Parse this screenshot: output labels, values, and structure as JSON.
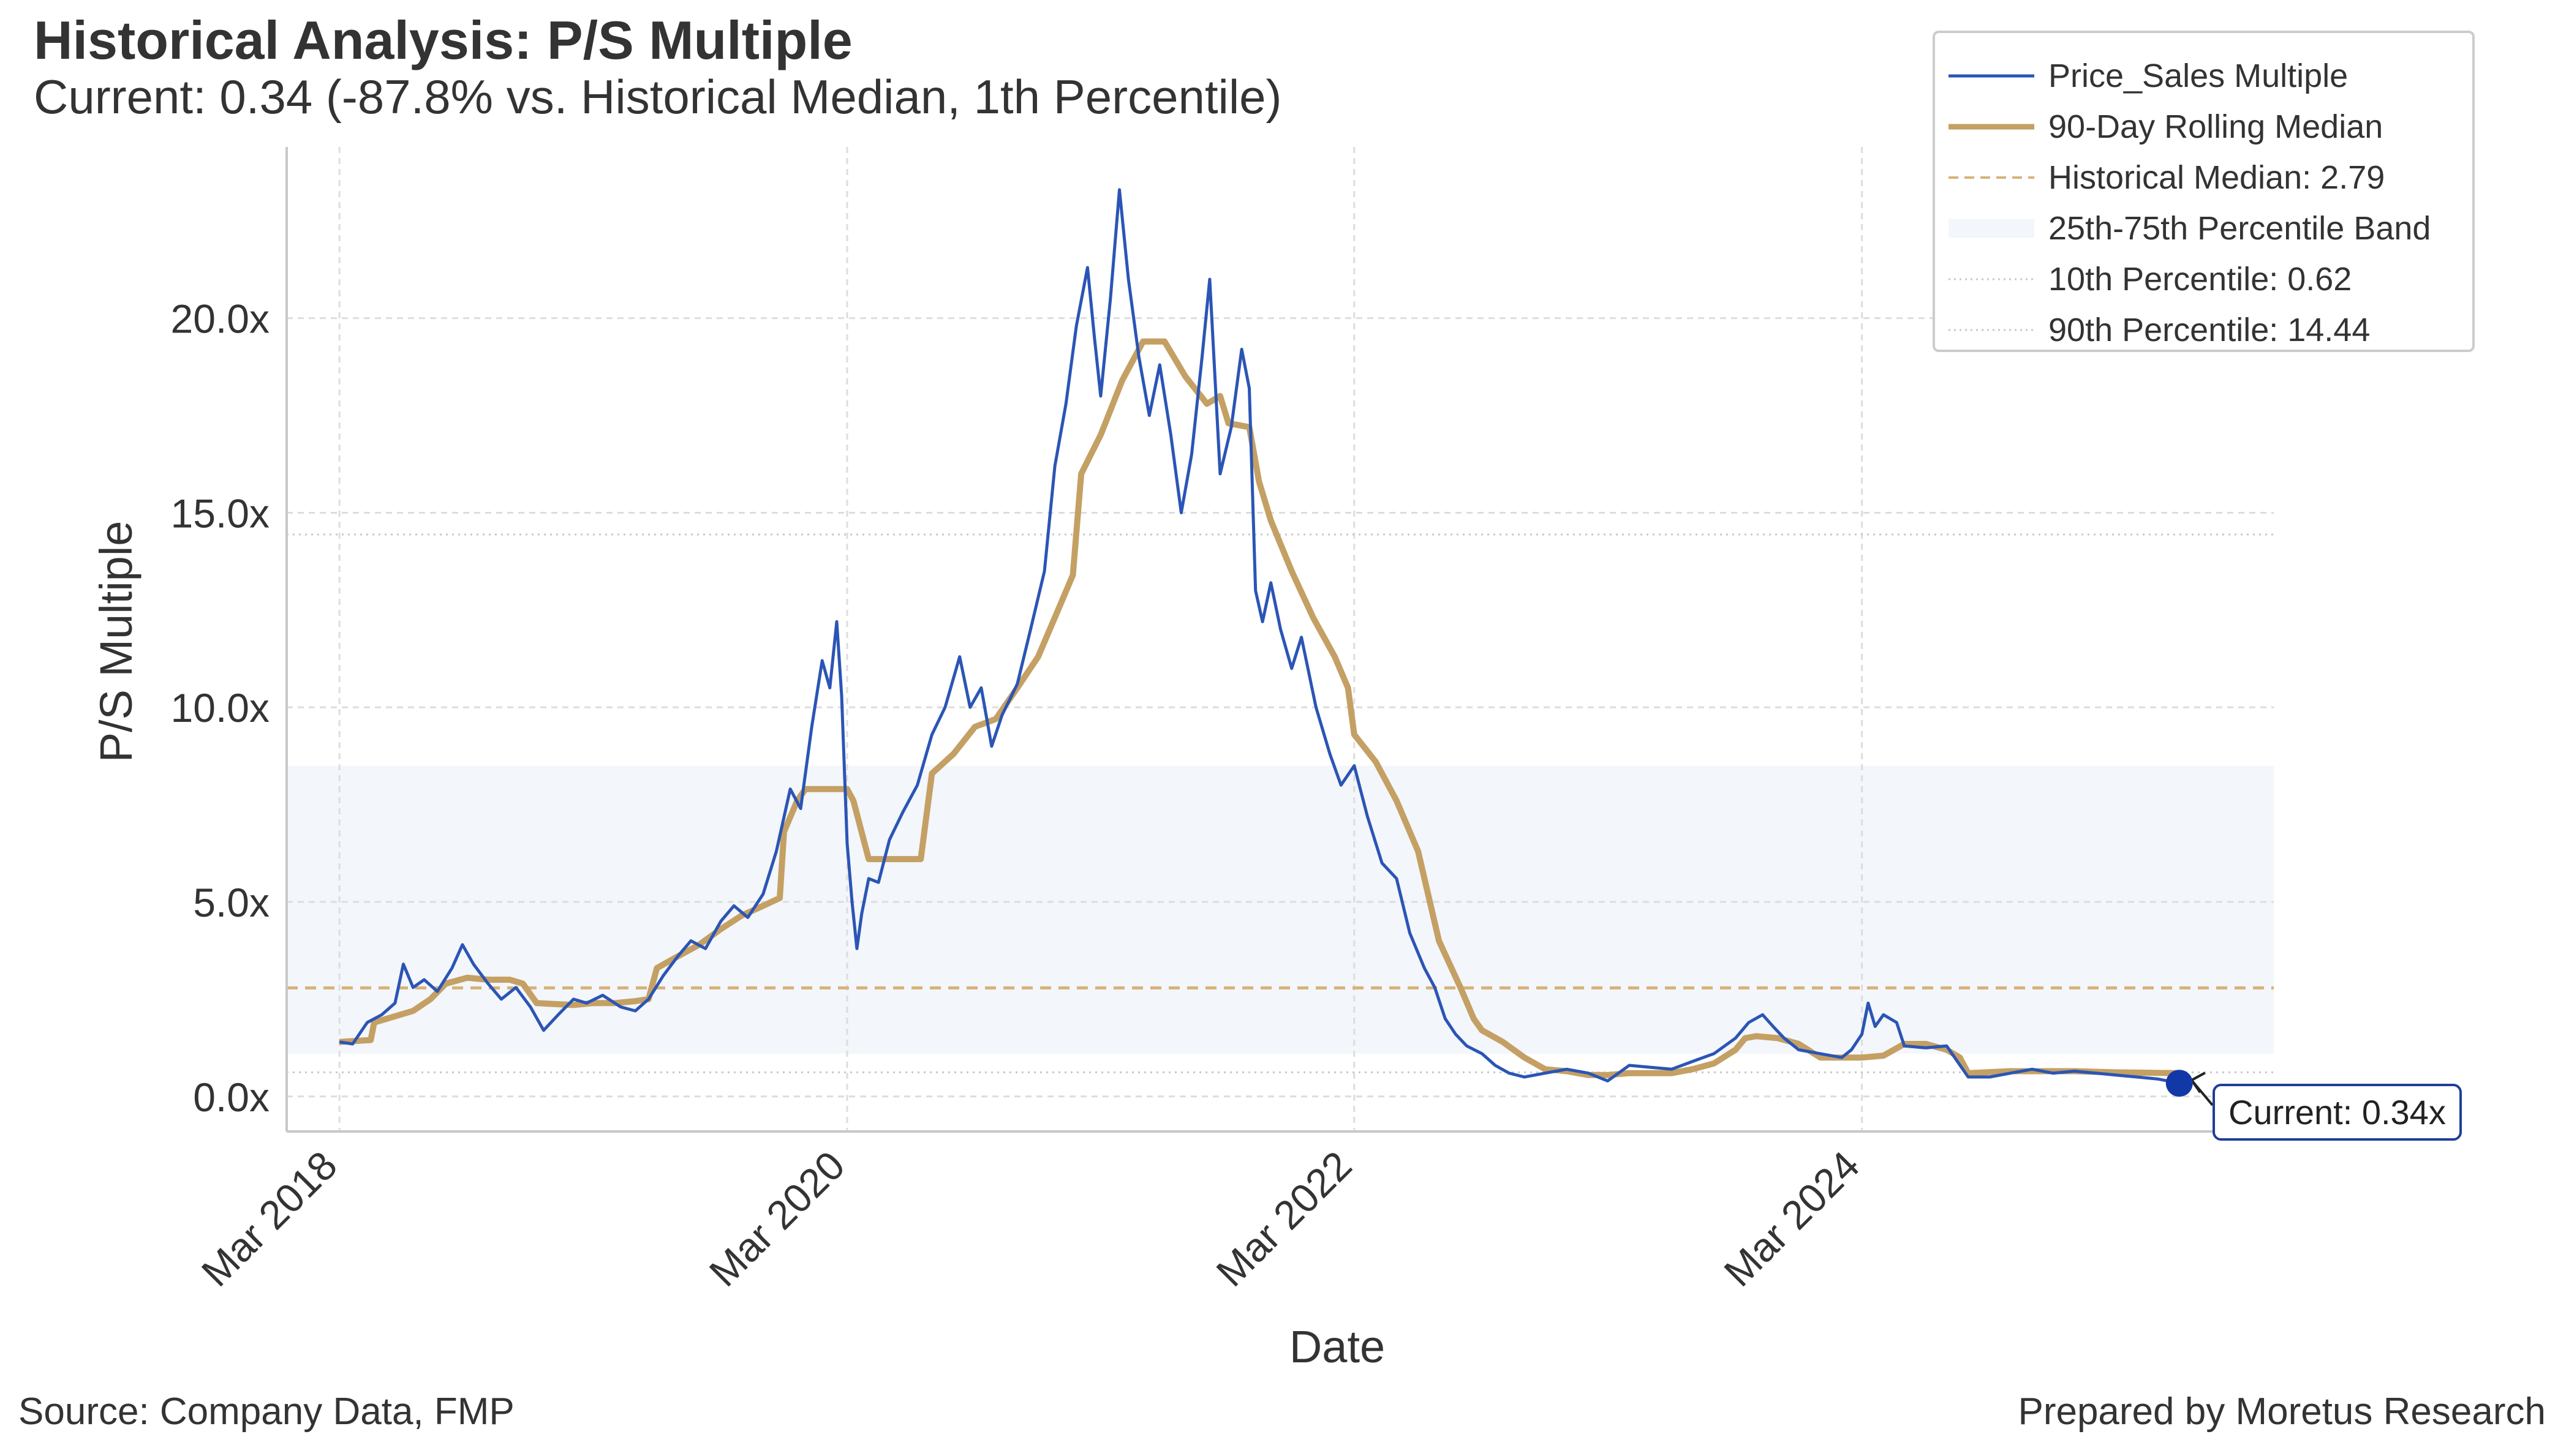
{
  "title": "Historical Analysis: P/S Multiple",
  "subtitle": "Current: 0.34 (-87.8% vs. Historical Median, 1th Percentile)",
  "footer": {
    "source": "Source: Company Data, FMP",
    "prepared_by": "Prepared by Moretus Research"
  },
  "colors": {
    "series": "#2b55b5",
    "rolling_median": "#c4a064",
    "historical_median": "#d8b27a",
    "band": "#f3f6fa",
    "percentile_lines": "#c8c8c8",
    "grid": "#dddddd",
    "current_marker": "#1238a8"
  },
  "chart_data": {
    "type": "line",
    "xlabel": "Date",
    "ylabel": "P/S Multiple",
    "x_range": [
      "2017-12-15",
      "2025-10-15"
    ],
    "ylim": [
      -0.9,
      24.4
    ],
    "x_ticks": [
      {
        "date": "2018-03-01",
        "label": "Mar 2018"
      },
      {
        "date": "2020-03-01",
        "label": "Mar 2020"
      },
      {
        "date": "2022-03-01",
        "label": "Mar 2022"
      },
      {
        "date": "2024-03-01",
        "label": "Mar 2024"
      }
    ],
    "y_ticks": [
      {
        "value": 0,
        "label": "0.0x"
      },
      {
        "value": 5,
        "label": "5.0x"
      },
      {
        "value": 10,
        "label": "10.0x"
      },
      {
        "value": 15,
        "label": "15.0x"
      },
      {
        "value": 20,
        "label": "20.0x"
      }
    ],
    "grid": true,
    "legend_position": "top-right",
    "legend": [
      "Price_Sales Multiple",
      "90-Day Rolling Median",
      "Historical Median: 2.79",
      "25th-75th Percentile Band",
      "10th Percentile: 0.62",
      "90th Percentile: 14.44"
    ],
    "historical_median": 2.79,
    "percentile_band": [
      1.1,
      8.5
    ],
    "percentile_10": 0.62,
    "percentile_90": 14.44,
    "current": {
      "date": "2025-06-01",
      "value": 0.34,
      "label": "Current: 0.34x"
    },
    "series": [
      {
        "name": "Price_Sales Multiple",
        "points": [
          [
            "2018-03-01",
            1.4
          ],
          [
            "2018-03-20",
            1.35
          ],
          [
            "2018-04-10",
            1.9
          ],
          [
            "2018-05-01",
            2.1
          ],
          [
            "2018-05-20",
            2.4
          ],
          [
            "2018-06-01",
            3.4
          ],
          [
            "2018-06-15",
            2.8
          ],
          [
            "2018-07-01",
            3.0
          ],
          [
            "2018-07-20",
            2.7
          ],
          [
            "2018-08-10",
            3.3
          ],
          [
            "2018-08-25",
            3.9
          ],
          [
            "2018-09-10",
            3.4
          ],
          [
            "2018-10-01",
            2.9
          ],
          [
            "2018-10-20",
            2.5
          ],
          [
            "2018-11-10",
            2.8
          ],
          [
            "2018-12-01",
            2.3
          ],
          [
            "2018-12-20",
            1.7
          ],
          [
            "2019-01-10",
            2.1
          ],
          [
            "2019-02-01",
            2.5
          ],
          [
            "2019-02-20",
            2.4
          ],
          [
            "2019-03-15",
            2.6
          ],
          [
            "2019-04-10",
            2.3
          ],
          [
            "2019-05-01",
            2.2
          ],
          [
            "2019-05-20",
            2.5
          ],
          [
            "2019-06-10",
            3.1
          ],
          [
            "2019-07-01",
            3.6
          ],
          [
            "2019-07-20",
            4.0
          ],
          [
            "2019-08-10",
            3.8
          ],
          [
            "2019-09-01",
            4.5
          ],
          [
            "2019-09-20",
            4.9
          ],
          [
            "2019-10-10",
            4.6
          ],
          [
            "2019-11-01",
            5.2
          ],
          [
            "2019-11-20",
            6.3
          ],
          [
            "2019-12-10",
            7.9
          ],
          [
            "2019-12-25",
            7.4
          ],
          [
            "2020-01-10",
            9.5
          ],
          [
            "2020-01-25",
            11.2
          ],
          [
            "2020-02-05",
            10.5
          ],
          [
            "2020-02-15",
            12.2
          ],
          [
            "2020-02-22",
            10.3
          ],
          [
            "2020-03-01",
            6.5
          ],
          [
            "2020-03-08",
            5.0
          ],
          [
            "2020-03-15",
            3.8
          ],
          [
            "2020-03-22",
            4.7
          ],
          [
            "2020-04-01",
            5.6
          ],
          [
            "2020-04-15",
            5.5
          ],
          [
            "2020-05-01",
            6.6
          ],
          [
            "2020-05-20",
            7.3
          ],
          [
            "2020-06-10",
            8.0
          ],
          [
            "2020-07-01",
            9.3
          ],
          [
            "2020-07-20",
            10.0
          ],
          [
            "2020-08-10",
            11.3
          ],
          [
            "2020-08-25",
            10.0
          ],
          [
            "2020-09-10",
            10.5
          ],
          [
            "2020-09-25",
            9.0
          ],
          [
            "2020-10-10",
            9.8
          ],
          [
            "2020-11-01",
            10.6
          ],
          [
            "2020-11-20",
            12.0
          ],
          [
            "2020-12-10",
            13.5
          ],
          [
            "2020-12-25",
            16.2
          ],
          [
            "2021-01-10",
            17.8
          ],
          [
            "2021-01-25",
            19.8
          ],
          [
            "2021-02-10",
            21.3
          ],
          [
            "2021-02-20",
            19.5
          ],
          [
            "2021-03-01",
            18.0
          ],
          [
            "2021-03-15",
            20.5
          ],
          [
            "2021-03-28",
            23.3
          ],
          [
            "2021-04-10",
            21.0
          ],
          [
            "2021-04-25",
            19.0
          ],
          [
            "2021-05-10",
            17.5
          ],
          [
            "2021-05-25",
            18.8
          ],
          [
            "2021-06-10",
            17.0
          ],
          [
            "2021-06-25",
            15.0
          ],
          [
            "2021-07-10",
            16.5
          ],
          [
            "2021-07-25",
            19.0
          ],
          [
            "2021-08-05",
            21.0
          ],
          [
            "2021-08-20",
            16.0
          ],
          [
            "2021-09-05",
            17.2
          ],
          [
            "2021-09-20",
            19.2
          ],
          [
            "2021-10-01",
            18.2
          ],
          [
            "2021-10-10",
            13.0
          ],
          [
            "2021-10-20",
            12.2
          ],
          [
            "2021-11-01",
            13.2
          ],
          [
            "2021-11-15",
            12.0
          ],
          [
            "2021-12-01",
            11.0
          ],
          [
            "2021-12-15",
            11.8
          ],
          [
            "2022-01-05",
            10.0
          ],
          [
            "2022-01-25",
            8.8
          ],
          [
            "2022-02-10",
            8.0
          ],
          [
            "2022-03-01",
            8.5
          ],
          [
            "2022-03-20",
            7.2
          ],
          [
            "2022-04-10",
            6.0
          ],
          [
            "2022-05-01",
            5.6
          ],
          [
            "2022-05-20",
            4.2
          ],
          [
            "2022-06-10",
            3.3
          ],
          [
            "2022-06-25",
            2.8
          ],
          [
            "2022-07-10",
            2.0
          ],
          [
            "2022-07-25",
            1.6
          ],
          [
            "2022-08-10",
            1.3
          ],
          [
            "2022-09-01",
            1.1
          ],
          [
            "2022-09-20",
            0.8
          ],
          [
            "2022-10-10",
            0.6
          ],
          [
            "2022-11-01",
            0.5
          ],
          [
            "2022-12-01",
            0.6
          ],
          [
            "2023-01-01",
            0.7
          ],
          [
            "2023-02-01",
            0.6
          ],
          [
            "2023-03-01",
            0.4
          ],
          [
            "2023-04-01",
            0.8
          ],
          [
            "2023-05-01",
            0.75
          ],
          [
            "2023-06-01",
            0.7
          ],
          [
            "2023-07-01",
            0.9
          ],
          [
            "2023-08-01",
            1.1
          ],
          [
            "2023-09-01",
            1.5
          ],
          [
            "2023-09-20",
            1.9
          ],
          [
            "2023-10-10",
            2.1
          ],
          [
            "2023-10-25",
            1.8
          ],
          [
            "2023-11-10",
            1.5
          ],
          [
            "2023-12-01",
            1.2
          ],
          [
            "2024-01-01",
            1.1
          ],
          [
            "2024-02-01",
            1.0
          ],
          [
            "2024-02-15",
            1.2
          ],
          [
            "2024-03-01",
            1.6
          ],
          [
            "2024-03-10",
            2.4
          ],
          [
            "2024-03-20",
            1.8
          ],
          [
            "2024-04-01",
            2.1
          ],
          [
            "2024-04-20",
            1.9
          ],
          [
            "2024-05-01",
            1.3
          ],
          [
            "2024-06-01",
            1.25
          ],
          [
            "2024-07-01",
            1.3
          ],
          [
            "2024-08-01",
            0.5
          ],
          [
            "2024-09-01",
            0.5
          ],
          [
            "2024-10-01",
            0.6
          ],
          [
            "2024-11-01",
            0.7
          ],
          [
            "2024-12-01",
            0.6
          ],
          [
            "2025-01-01",
            0.65
          ],
          [
            "2025-02-01",
            0.6
          ],
          [
            "2025-03-01",
            0.55
          ],
          [
            "2025-04-01",
            0.5
          ],
          [
            "2025-05-01",
            0.45
          ],
          [
            "2025-06-01",
            0.34
          ]
        ]
      },
      {
        "name": "90-Day Rolling Median",
        "points": [
          [
            "2018-03-01",
            1.4
          ],
          [
            "2018-04-15",
            1.45
          ],
          [
            "2018-04-20",
            1.9
          ],
          [
            "2018-06-15",
            2.2
          ],
          [
            "2018-07-10",
            2.5
          ],
          [
            "2018-08-01",
            2.9
          ],
          [
            "2018-09-01",
            3.05
          ],
          [
            "2018-10-01",
            3.0
          ],
          [
            "2018-11-01",
            3.0
          ],
          [
            "2018-11-20",
            2.9
          ],
          [
            "2018-12-10",
            2.4
          ],
          [
            "2019-02-01",
            2.35
          ],
          [
            "2019-03-01",
            2.4
          ],
          [
            "2019-04-01",
            2.4
          ],
          [
            "2019-05-01",
            2.45
          ],
          [
            "2019-05-20",
            2.5
          ],
          [
            "2019-06-01",
            3.3
          ],
          [
            "2019-07-01",
            3.6
          ],
          [
            "2019-08-01",
            3.9
          ],
          [
            "2019-09-01",
            4.3
          ],
          [
            "2019-10-01",
            4.65
          ],
          [
            "2019-11-01",
            4.9
          ],
          [
            "2019-11-25",
            5.1
          ],
          [
            "2019-12-01",
            6.8
          ],
          [
            "2019-12-20",
            7.6
          ],
          [
            "2020-01-01",
            7.9
          ],
          [
            "2020-02-01",
            7.9
          ],
          [
            "2020-03-01",
            7.9
          ],
          [
            "2020-03-10",
            7.6
          ],
          [
            "2020-04-01",
            6.1
          ],
          [
            "2020-05-01",
            6.1
          ],
          [
            "2020-06-01",
            6.1
          ],
          [
            "2020-06-15",
            6.1
          ],
          [
            "2020-07-01",
            8.3
          ],
          [
            "2020-08-01",
            8.8
          ],
          [
            "2020-09-01",
            9.5
          ],
          [
            "2020-10-01",
            9.7
          ],
          [
            "2020-11-01",
            10.5
          ],
          [
            "2020-12-01",
            11.3
          ],
          [
            "2021-01-01",
            12.6
          ],
          [
            "2021-01-20",
            13.4
          ],
          [
            "2021-02-01",
            16.0
          ],
          [
            "2021-03-01",
            17.0
          ],
          [
            "2021-04-01",
            18.4
          ],
          [
            "2021-05-01",
            19.4
          ],
          [
            "2021-06-01",
            19.4
          ],
          [
            "2021-07-01",
            18.5
          ],
          [
            "2021-08-01",
            17.8
          ],
          [
            "2021-08-20",
            18.0
          ],
          [
            "2021-09-01",
            17.3
          ],
          [
            "2021-10-01",
            17.2
          ],
          [
            "2021-10-15",
            15.8
          ],
          [
            "2021-11-01",
            14.8
          ],
          [
            "2021-12-01",
            13.5
          ],
          [
            "2022-01-01",
            12.3
          ],
          [
            "2022-02-01",
            11.3
          ],
          [
            "2022-02-20",
            10.5
          ],
          [
            "2022-03-01",
            9.3
          ],
          [
            "2022-04-01",
            8.6
          ],
          [
            "2022-05-01",
            7.6
          ],
          [
            "2022-06-01",
            6.3
          ],
          [
            "2022-07-01",
            4.0
          ],
          [
            "2022-08-01",
            2.8
          ],
          [
            "2022-08-20",
            2.0
          ],
          [
            "2022-09-01",
            1.7
          ],
          [
            "2022-10-01",
            1.4
          ],
          [
            "2022-11-01",
            1.0
          ],
          [
            "2022-12-01",
            0.7
          ],
          [
            "2023-01-01",
            0.65
          ],
          [
            "2023-02-01",
            0.55
          ],
          [
            "2023-03-01",
            0.55
          ],
          [
            "2023-04-01",
            0.6
          ],
          [
            "2023-05-01",
            0.6
          ],
          [
            "2023-06-01",
            0.6
          ],
          [
            "2023-07-01",
            0.7
          ],
          [
            "2023-08-01",
            0.85
          ],
          [
            "2023-09-01",
            1.2
          ],
          [
            "2023-09-15",
            1.5
          ],
          [
            "2023-10-01",
            1.55
          ],
          [
            "2023-11-01",
            1.5
          ],
          [
            "2023-12-01",
            1.35
          ],
          [
            "2024-01-01",
            1.0
          ],
          [
            "2024-02-01",
            1.0
          ],
          [
            "2024-03-01",
            1.0
          ],
          [
            "2024-04-01",
            1.05
          ],
          [
            "2024-05-01",
            1.35
          ],
          [
            "2024-06-01",
            1.35
          ],
          [
            "2024-07-01",
            1.2
          ],
          [
            "2024-07-20",
            1.0
          ],
          [
            "2024-08-01",
            0.6
          ],
          [
            "2024-10-01",
            0.65
          ],
          [
            "2025-01-01",
            0.65
          ],
          [
            "2025-03-01",
            0.62
          ],
          [
            "2025-06-01",
            0.6
          ]
        ]
      }
    ]
  }
}
